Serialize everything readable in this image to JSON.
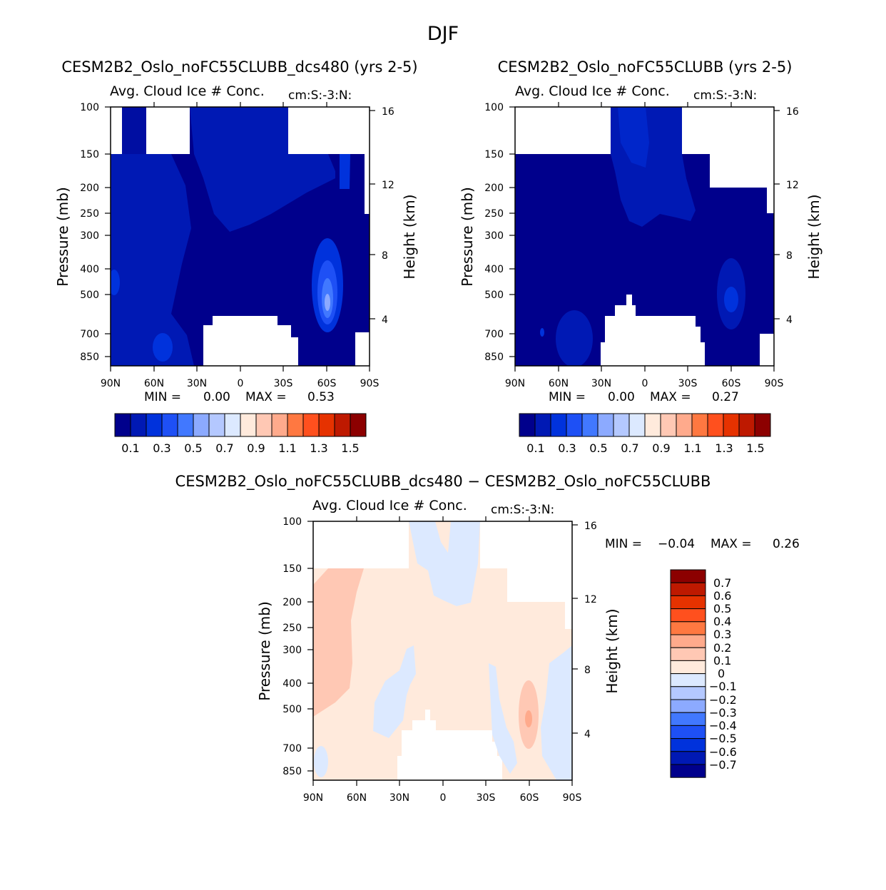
{
  "figure_title": "DJF",
  "colors": {
    "abs_scale": [
      "#00008c",
      "#0019b4",
      "#0032dc",
      "#1e50f5",
      "#4178ff",
      "#8caaff",
      "#b4c8ff",
      "#dce9ff",
      "#ffeadc",
      "#ffc8b4",
      "#ffaa8c",
      "#ff7841",
      "#ff501e",
      "#e63200",
      "#be1900",
      "#8c0000"
    ],
    "diff_scale": [
      "#00008c",
      "#0019b4",
      "#0032dc",
      "#1e50f5",
      "#4178ff",
      "#8caaff",
      "#b4c8ff",
      "#dce9ff",
      "#ffeadc",
      "#ffc8b4",
      "#ffaa8c",
      "#ff7841",
      "#ff501e",
      "#e63200",
      "#be1900",
      "#8c0000"
    ],
    "missing": "#ffffff"
  },
  "chart_data": [
    {
      "type": "heatmap",
      "title": "CESM2B2_Oslo_noFC55CLUBB_dcs480 (yrs 2-5)",
      "subtitle": "Avg. Cloud Ice # Conc.",
      "units": "cm:S:-3:N:",
      "xlabel": "",
      "ylabel": "Pressure (mb)",
      "ylabel_right": "Height (km)",
      "x_ticks": [
        "90N",
        "60N",
        "30N",
        "0",
        "30S",
        "60S",
        "90S"
      ],
      "y_ticks": [
        "100",
        "150",
        "200",
        "250",
        "300",
        "400",
        "500",
        "700",
        "850"
      ],
      "y_right_ticks": [
        "16",
        "12",
        "8",
        "4"
      ],
      "min_label": "MIN =",
      "min_value": "0.00",
      "max_label": "MAX =",
      "max_value": "0.53",
      "colorbar_labels": [
        "0.1",
        "0.3",
        "0.5",
        "0.7",
        "0.9",
        "1.1",
        "1.3",
        "1.5"
      ],
      "ylim": [
        1000,
        100
      ]
    },
    {
      "type": "heatmap",
      "title": "CESM2B2_Oslo_noFC55CLUBB (yrs 2-5)",
      "subtitle": "Avg. Cloud Ice # Conc.",
      "units": "cm:S:-3:N:",
      "xlabel": "",
      "ylabel": "Pressure (mb)",
      "ylabel_right": "Height (km)",
      "x_ticks": [
        "90N",
        "60N",
        "30N",
        "0",
        "30S",
        "60S",
        "90S"
      ],
      "y_ticks": [
        "100",
        "150",
        "200",
        "250",
        "300",
        "400",
        "500",
        "700",
        "850"
      ],
      "y_right_ticks": [
        "16",
        "12",
        "8",
        "4"
      ],
      "min_label": "MIN =",
      "min_value": "0.00",
      "max_label": "MAX =",
      "max_value": "0.27",
      "colorbar_labels": [
        "0.1",
        "0.3",
        "0.5",
        "0.7",
        "0.9",
        "1.1",
        "1.3",
        "1.5"
      ],
      "ylim": [
        1000,
        100
      ]
    },
    {
      "type": "heatmap",
      "title": "CESM2B2_Oslo_noFC55CLUBB_dcs480 − CESM2B2_Oslo_noFC55CLUBB",
      "subtitle": "Avg. Cloud Ice # Conc.",
      "units": "cm:S:-3:N:",
      "xlabel": "",
      "ylabel": "Pressure (mb)",
      "ylabel_right": "Height (km)",
      "x_ticks": [
        "90N",
        "60N",
        "30N",
        "0",
        "30S",
        "60S",
        "90S"
      ],
      "y_ticks": [
        "100",
        "150",
        "200",
        "250",
        "300",
        "400",
        "500",
        "700",
        "850"
      ],
      "y_right_ticks": [
        "16",
        "12",
        "8",
        "4"
      ],
      "min_label": "MIN =",
      "min_value": "−0.04",
      "max_label": "MAX =",
      "max_value": "0.26",
      "colorbar_labels": [
        "0.7",
        "0.6",
        "0.5",
        "0.4",
        "0.3",
        "0.2",
        "0.1",
        "0",
        "−0.1",
        "−0.2",
        "−0.3",
        "−0.4",
        "−0.5",
        "−0.6",
        "−0.7"
      ],
      "ylim": [
        1000,
        100
      ]
    }
  ]
}
